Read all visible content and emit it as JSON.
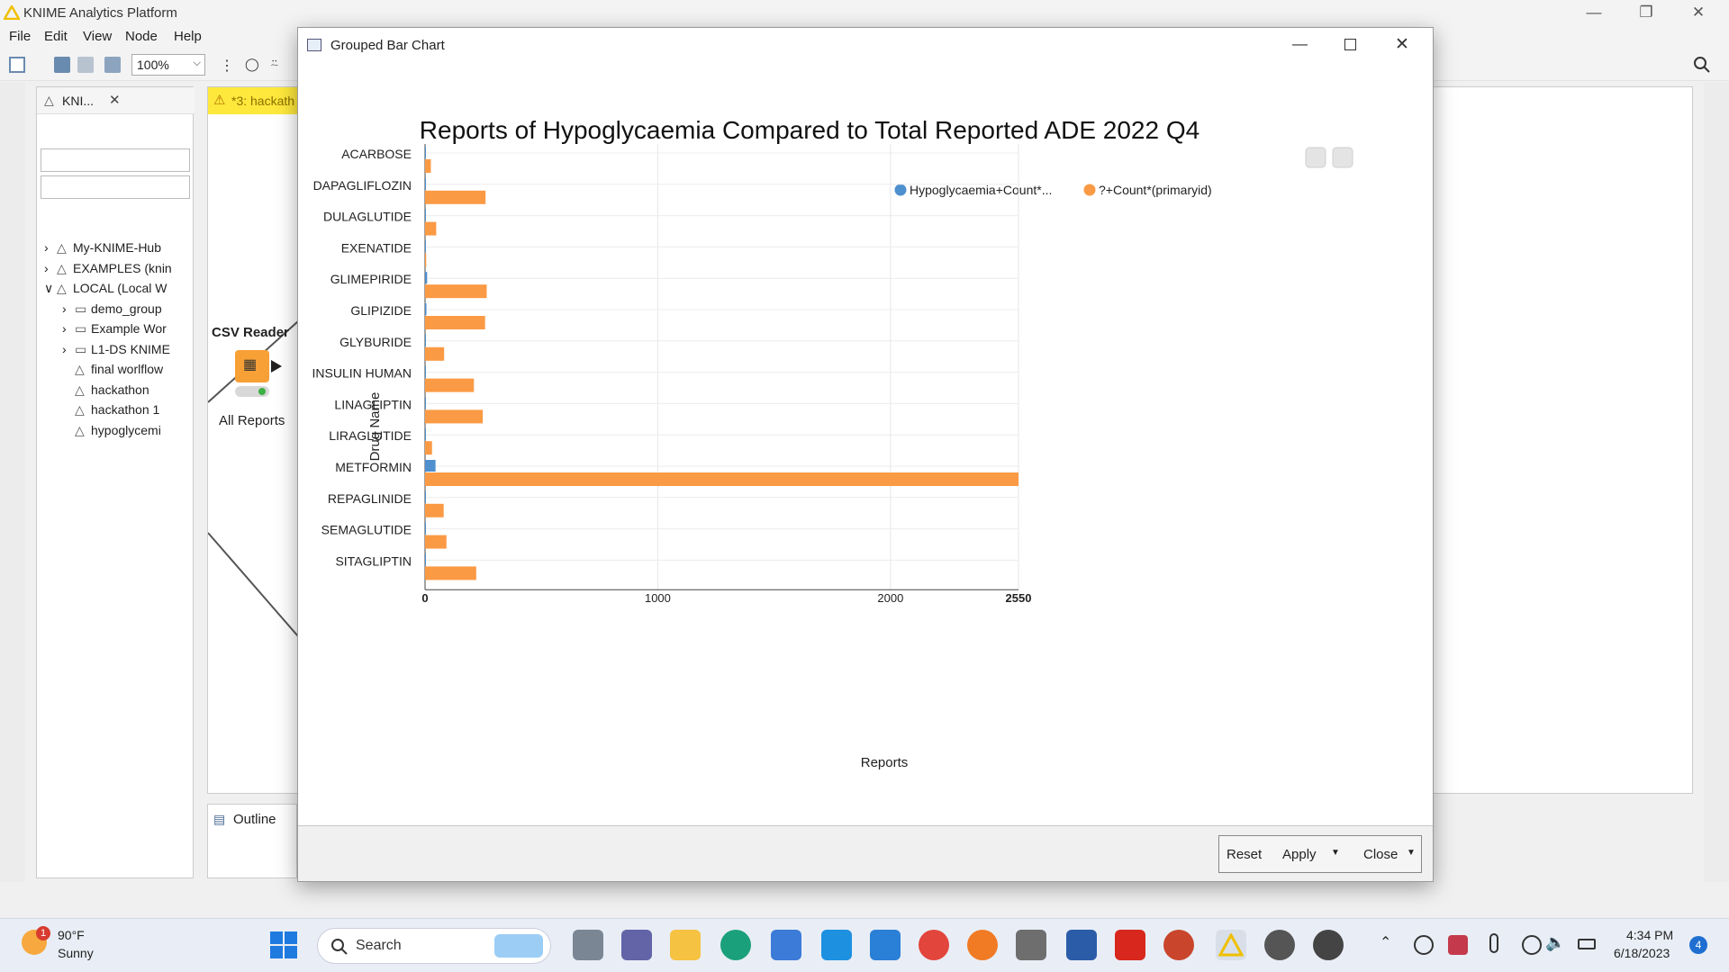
{
  "app": {
    "title": "KNIME Analytics Platform",
    "menu": [
      "File",
      "Edit",
      "View",
      "Node",
      "Help"
    ],
    "zoom": "100%"
  },
  "explorer": {
    "tab_label": "KNI...",
    "tree": [
      {
        "label": "My-KNIME-Hub",
        "expanded": false
      },
      {
        "label": "EXAMPLES (knin",
        "expanded": false
      },
      {
        "label": "LOCAL (Local W",
        "expanded": true
      },
      {
        "label": "demo_group",
        "expanded": false
      },
      {
        "label": "Example Wor",
        "expanded": false
      },
      {
        "label": "L1-DS KNIME",
        "expanded": false
      },
      {
        "label": "final worlflow"
      },
      {
        "label": "hackathon"
      },
      {
        "label": "hackathon 1"
      },
      {
        "label": "hypoglycemi"
      }
    ]
  },
  "editor": {
    "tab_label": "*3: hackath",
    "node_title": "CSV Reader",
    "node_label": "All Reports"
  },
  "outline": {
    "tab_label": "Outline"
  },
  "dialog": {
    "title": "Grouped Bar Chart",
    "buttons": {
      "reset": "Reset",
      "apply": "Apply",
      "close": "Close"
    }
  },
  "chart_data": {
    "type": "bar",
    "orientation": "horizontal",
    "title": "Reports of Hypoglycaemia Compared to Total Reported ADE 2022 Q4",
    "xlabel": "Reports",
    "ylabel": "Drug Name",
    "xlim": [
      0,
      2550
    ],
    "xticks": [
      "0",
      "1000",
      "2000",
      "2550"
    ],
    "grid": true,
    "legend_position": "top-right",
    "categories": [
      "ACARBOSE",
      "DAPAGLIFLOZIN",
      "DULAGLUTIDE",
      "EXENATIDE",
      "GLIMEPIRIDE",
      "GLIPIZIDE",
      "GLYBURIDE",
      "INSULIN HUMAN",
      "LINAGLIPTIN",
      "LIRAGLUTIDE",
      "METFORMIN",
      "REPAGLINIDE",
      "SEMAGLUTIDE",
      "SITAGLIPTIN"
    ],
    "series": [
      {
        "name": "Hypoglycaemia+Count*...",
        "color": "#4e8fce",
        "values": [
          2,
          4,
          1,
          1,
          9,
          6,
          3,
          2,
          2,
          1,
          45,
          2,
          1,
          2
        ]
      },
      {
        "name": "?+Count*(primaryid)",
        "color": "#fb9a44",
        "values": [
          25,
          260,
          48,
          5,
          265,
          258,
          82,
          210,
          248,
          30,
          2550,
          80,
          92,
          220
        ]
      }
    ]
  },
  "taskbar": {
    "weather_temp": "90°F",
    "weather_desc": "Sunny",
    "weather_badge": "1",
    "search": "Search",
    "time": "4:34 PM",
    "date": "6/18/2023",
    "notif_count": "4"
  }
}
